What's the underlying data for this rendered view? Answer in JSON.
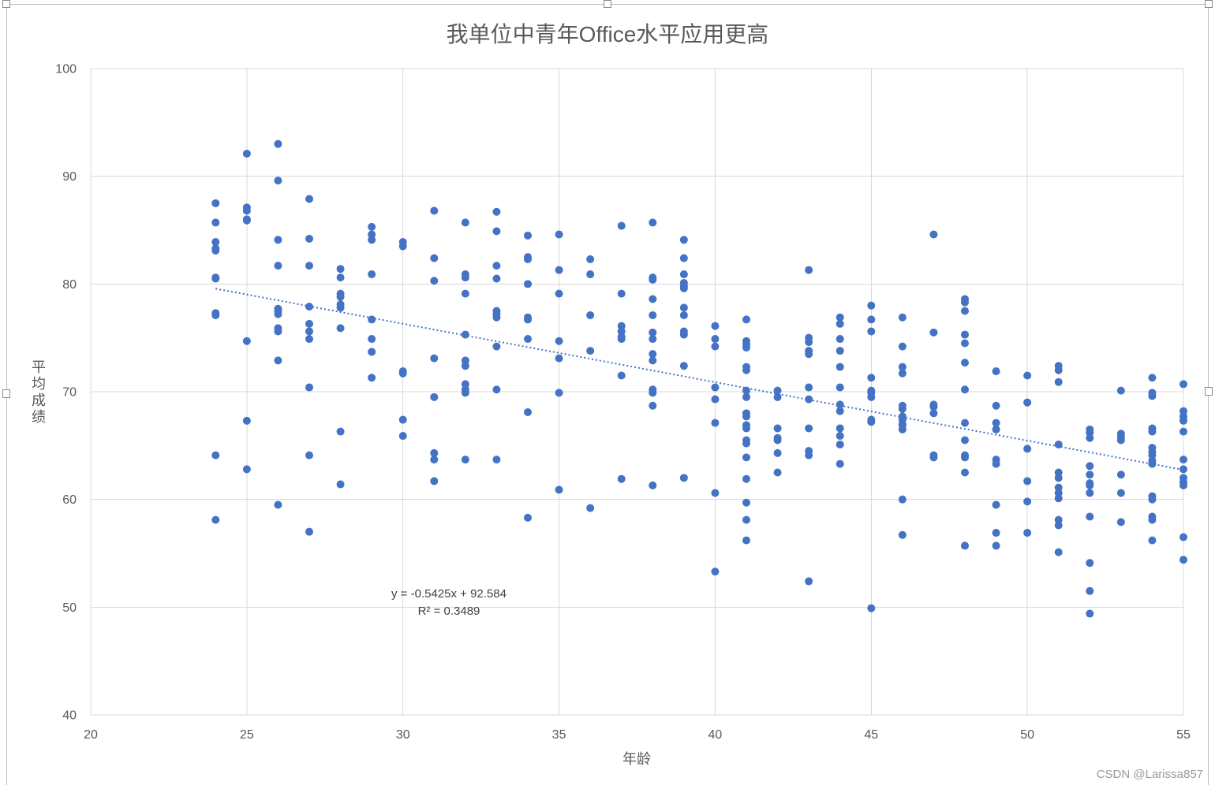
{
  "chart_data": {
    "type": "scatter",
    "title": "我单位中青年Office水平应用更高",
    "xlabel": "年龄",
    "ylabel": "平均成绩",
    "xlim": [
      20,
      55
    ],
    "ylim": [
      40,
      100
    ],
    "x_ticks": [
      20,
      25,
      30,
      35,
      40,
      45,
      50,
      55
    ],
    "y_ticks": [
      40,
      50,
      60,
      70,
      80,
      90,
      100
    ],
    "grid": {
      "x": true,
      "y": true
    },
    "series": [
      {
        "points": [
          [
            24,
            87.5
          ],
          [
            24,
            85.7
          ],
          [
            24,
            83.9
          ],
          [
            24,
            83.3
          ],
          [
            24,
            83.1
          ],
          [
            24,
            80.6
          ],
          [
            24,
            80.5
          ],
          [
            24,
            77.3
          ],
          [
            24,
            77.1
          ],
          [
            24,
            64.1
          ],
          [
            24,
            58.1
          ],
          [
            25,
            92.1
          ],
          [
            25,
            87.1
          ],
          [
            25,
            86.8
          ],
          [
            25,
            86.0
          ],
          [
            25,
            85.9
          ],
          [
            25,
            74.7
          ],
          [
            25,
            67.3
          ],
          [
            25,
            62.8
          ],
          [
            26,
            93.0
          ],
          [
            26,
            89.6
          ],
          [
            26,
            84.1
          ],
          [
            26,
            81.7
          ],
          [
            26,
            77.7
          ],
          [
            26,
            77.5
          ],
          [
            26,
            77.2
          ],
          [
            26,
            75.9
          ],
          [
            26,
            75.6
          ],
          [
            26,
            72.9
          ],
          [
            26,
            59.5
          ],
          [
            27,
            87.9
          ],
          [
            27,
            84.2
          ],
          [
            27,
            81.7
          ],
          [
            27,
            77.9
          ],
          [
            27,
            76.3
          ],
          [
            27,
            75.6
          ],
          [
            27,
            74.9
          ],
          [
            27,
            70.4
          ],
          [
            27,
            64.1
          ],
          [
            27,
            57.0
          ],
          [
            28,
            81.4
          ],
          [
            28,
            80.6
          ],
          [
            28,
            79.1
          ],
          [
            28,
            78.8
          ],
          [
            28,
            78.1
          ],
          [
            28,
            77.8
          ],
          [
            28,
            75.9
          ],
          [
            28,
            66.3
          ],
          [
            28,
            61.4
          ],
          [
            29,
            85.3
          ],
          [
            29,
            84.6
          ],
          [
            29,
            84.1
          ],
          [
            29,
            80.9
          ],
          [
            29,
            76.7
          ],
          [
            29,
            74.9
          ],
          [
            29,
            73.7
          ],
          [
            29,
            71.3
          ],
          [
            30,
            83.9
          ],
          [
            30,
            83.5
          ],
          [
            30,
            71.9
          ],
          [
            30,
            71.7
          ],
          [
            30,
            67.4
          ],
          [
            30,
            65.9
          ],
          [
            31,
            86.8
          ],
          [
            31,
            82.4
          ],
          [
            31,
            80.3
          ],
          [
            31,
            73.1
          ],
          [
            31,
            69.5
          ],
          [
            31,
            64.3
          ],
          [
            31,
            63.7
          ],
          [
            31,
            61.7
          ],
          [
            32,
            85.7
          ],
          [
            32,
            80.9
          ],
          [
            32,
            80.6
          ],
          [
            32,
            79.1
          ],
          [
            32,
            75.3
          ],
          [
            32,
            72.9
          ],
          [
            32,
            72.4
          ],
          [
            32,
            70.7
          ],
          [
            32,
            70.2
          ],
          [
            32,
            69.9
          ],
          [
            32,
            63.7
          ],
          [
            33,
            86.7
          ],
          [
            33,
            84.9
          ],
          [
            33,
            81.7
          ],
          [
            33,
            80.5
          ],
          [
            33,
            77.5
          ],
          [
            33,
            77.2
          ],
          [
            33,
            76.9
          ],
          [
            33,
            74.2
          ],
          [
            33,
            70.2
          ],
          [
            33,
            63.7
          ],
          [
            34,
            84.5
          ],
          [
            34,
            82.5
          ],
          [
            34,
            82.3
          ],
          [
            34,
            80.0
          ],
          [
            34,
            76.9
          ],
          [
            34,
            76.7
          ],
          [
            34,
            74.9
          ],
          [
            34,
            68.1
          ],
          [
            34,
            58.3
          ],
          [
            35,
            84.6
          ],
          [
            35,
            81.3
          ],
          [
            35,
            79.1
          ],
          [
            35,
            74.7
          ],
          [
            35,
            73.1
          ],
          [
            35,
            69.9
          ],
          [
            35,
            60.9
          ],
          [
            36,
            82.3
          ],
          [
            36,
            80.9
          ],
          [
            36,
            77.1
          ],
          [
            36,
            73.8
          ],
          [
            36,
            59.2
          ],
          [
            37,
            85.4
          ],
          [
            37,
            79.1
          ],
          [
            37,
            76.1
          ],
          [
            37,
            75.6
          ],
          [
            37,
            75.1
          ],
          [
            37,
            74.9
          ],
          [
            37,
            71.5
          ],
          [
            37,
            61.9
          ],
          [
            38,
            85.7
          ],
          [
            38,
            80.6
          ],
          [
            38,
            80.4
          ],
          [
            38,
            78.6
          ],
          [
            38,
            77.1
          ],
          [
            38,
            75.5
          ],
          [
            38,
            74.9
          ],
          [
            38,
            73.5
          ],
          [
            38,
            72.9
          ],
          [
            38,
            70.2
          ],
          [
            38,
            69.9
          ],
          [
            38,
            68.7
          ],
          [
            38,
            61.3
          ],
          [
            39,
            84.1
          ],
          [
            39,
            82.4
          ],
          [
            39,
            80.9
          ],
          [
            39,
            80.1
          ],
          [
            39,
            79.8
          ],
          [
            39,
            79.6
          ],
          [
            39,
            77.8
          ],
          [
            39,
            77.1
          ],
          [
            39,
            75.6
          ],
          [
            39,
            75.3
          ],
          [
            39,
            72.4
          ],
          [
            39,
            62.0
          ],
          [
            40,
            76.1
          ],
          [
            40,
            74.9
          ],
          [
            40,
            74.2
          ],
          [
            40,
            70.4
          ],
          [
            40,
            69.3
          ],
          [
            40,
            67.1
          ],
          [
            40,
            60.6
          ],
          [
            40,
            53.3
          ],
          [
            41,
            76.7
          ],
          [
            41,
            74.7
          ],
          [
            41,
            74.4
          ],
          [
            41,
            74.1
          ],
          [
            41,
            72.3
          ],
          [
            41,
            72.0
          ],
          [
            41,
            70.1
          ],
          [
            41,
            69.5
          ],
          [
            41,
            68.0
          ],
          [
            41,
            67.7
          ],
          [
            41,
            66.9
          ],
          [
            41,
            66.6
          ],
          [
            41,
            65.5
          ],
          [
            41,
            65.2
          ],
          [
            41,
            63.9
          ],
          [
            41,
            61.9
          ],
          [
            41,
            59.7
          ],
          [
            41,
            58.1
          ],
          [
            41,
            56.2
          ],
          [
            42,
            70.1
          ],
          [
            42,
            69.5
          ],
          [
            42,
            66.6
          ],
          [
            42,
            65.7
          ],
          [
            42,
            65.5
          ],
          [
            42,
            64.3
          ],
          [
            42,
            62.5
          ],
          [
            43,
            81.3
          ],
          [
            43,
            75.0
          ],
          [
            43,
            74.6
          ],
          [
            43,
            73.8
          ],
          [
            43,
            73.5
          ],
          [
            43,
            70.4
          ],
          [
            43,
            69.3
          ],
          [
            43,
            66.6
          ],
          [
            43,
            64.5
          ],
          [
            43,
            64.1
          ],
          [
            43,
            52.4
          ],
          [
            44,
            76.9
          ],
          [
            44,
            76.3
          ],
          [
            44,
            74.9
          ],
          [
            44,
            73.8
          ],
          [
            44,
            72.3
          ],
          [
            44,
            70.4
          ],
          [
            44,
            68.8
          ],
          [
            44,
            68.2
          ],
          [
            44,
            66.6
          ],
          [
            44,
            65.9
          ],
          [
            44,
            65.1
          ],
          [
            44,
            63.3
          ],
          [
            45,
            78.0
          ],
          [
            45,
            76.7
          ],
          [
            45,
            75.6
          ],
          [
            45,
            71.3
          ],
          [
            45,
            70.1
          ],
          [
            45,
            69.9
          ],
          [
            45,
            69.5
          ],
          [
            45,
            67.4
          ],
          [
            45,
            67.2
          ],
          [
            45,
            49.9
          ],
          [
            46,
            76.9
          ],
          [
            46,
            74.2
          ],
          [
            46,
            72.3
          ],
          [
            46,
            71.7
          ],
          [
            46,
            68.7
          ],
          [
            46,
            68.4
          ],
          [
            46,
            67.7
          ],
          [
            46,
            67.4
          ],
          [
            46,
            67.0
          ],
          [
            46,
            66.9
          ],
          [
            46,
            66.5
          ],
          [
            46,
            60.0
          ],
          [
            46,
            56.7
          ],
          [
            47,
            84.6
          ],
          [
            47,
            75.5
          ],
          [
            47,
            68.8
          ],
          [
            47,
            68.6
          ],
          [
            47,
            68.0
          ],
          [
            47,
            64.1
          ],
          [
            47,
            63.9
          ],
          [
            48,
            78.6
          ],
          [
            48,
            78.3
          ],
          [
            48,
            77.5
          ],
          [
            48,
            75.3
          ],
          [
            48,
            74.5
          ],
          [
            48,
            72.7
          ],
          [
            48,
            70.2
          ],
          [
            48,
            67.1
          ],
          [
            48,
            65.5
          ],
          [
            48,
            64.1
          ],
          [
            48,
            63.9
          ],
          [
            48,
            62.5
          ],
          [
            48,
            55.7
          ],
          [
            49,
            71.9
          ],
          [
            49,
            68.7
          ],
          [
            49,
            67.1
          ],
          [
            49,
            66.5
          ],
          [
            49,
            63.7
          ],
          [
            49,
            63.3
          ],
          [
            49,
            59.5
          ],
          [
            49,
            56.9
          ],
          [
            49,
            55.7
          ],
          [
            50,
            71.5
          ],
          [
            50,
            69.0
          ],
          [
            50,
            64.7
          ],
          [
            50,
            61.7
          ],
          [
            50,
            59.8
          ],
          [
            50,
            56.9
          ],
          [
            51,
            72.4
          ],
          [
            51,
            72.0
          ],
          [
            51,
            70.9
          ],
          [
            51,
            65.1
          ],
          [
            51,
            62.5
          ],
          [
            51,
            62.0
          ],
          [
            51,
            61.1
          ],
          [
            51,
            60.6
          ],
          [
            51,
            60.1
          ],
          [
            51,
            58.1
          ],
          [
            51,
            57.6
          ],
          [
            51,
            55.1
          ],
          [
            52,
            66.5
          ],
          [
            52,
            66.2
          ],
          [
            52,
            65.7
          ],
          [
            52,
            63.1
          ],
          [
            52,
            62.3
          ],
          [
            52,
            61.5
          ],
          [
            52,
            61.3
          ],
          [
            52,
            60.6
          ],
          [
            52,
            58.4
          ],
          [
            52,
            54.1
          ],
          [
            52,
            51.5
          ],
          [
            52,
            49.4
          ],
          [
            53,
            70.1
          ],
          [
            53,
            66.1
          ],
          [
            53,
            65.8
          ],
          [
            53,
            65.5
          ],
          [
            53,
            62.3
          ],
          [
            53,
            60.6
          ],
          [
            53,
            57.9
          ],
          [
            54,
            71.3
          ],
          [
            54,
            69.9
          ],
          [
            54,
            69.6
          ],
          [
            54,
            66.6
          ],
          [
            54,
            66.3
          ],
          [
            54,
            64.8
          ],
          [
            54,
            64.4
          ],
          [
            54,
            64.1
          ],
          [
            54,
            63.6
          ],
          [
            54,
            63.3
          ],
          [
            54,
            60.3
          ],
          [
            54,
            60.0
          ],
          [
            54,
            58.4
          ],
          [
            54,
            58.1
          ],
          [
            54,
            56.2
          ],
          [
            55,
            70.7
          ],
          [
            55,
            68.2
          ],
          [
            55,
            67.7
          ],
          [
            55,
            67.3
          ],
          [
            55,
            66.3
          ],
          [
            55,
            63.7
          ],
          [
            55,
            62.8
          ],
          [
            55,
            62.0
          ],
          [
            55,
            61.6
          ],
          [
            55,
            61.3
          ],
          [
            55,
            56.5
          ],
          [
            55,
            54.4
          ]
        ]
      }
    ],
    "trendline": {
      "slope": -0.5425,
      "intercept": 92.584,
      "equation": "y = -0.5425x + 92.584",
      "r_squared": "R² = 0.3489"
    },
    "colors": {
      "marker": "#4472C4",
      "trendline": "#4472C4",
      "gridline": "#D9D9D9",
      "text": "#595959"
    }
  },
  "watermark": "CSDN @Larissa857"
}
